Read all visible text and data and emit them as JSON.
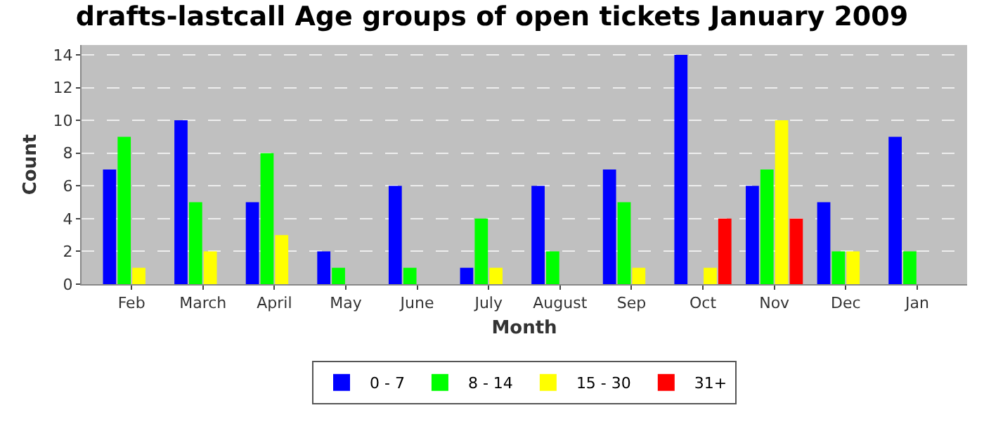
{
  "chart_data": {
    "type": "bar",
    "title": "drafts-lastcall Age groups of open tickets January 2009",
    "xlabel": "Month",
    "ylabel": "Count",
    "categories": [
      "Feb",
      "March",
      "April",
      "May",
      "June",
      "July",
      "August",
      "Sep",
      "Oct",
      "Nov",
      "Dec",
      "Jan"
    ],
    "series": [
      {
        "name": "0 - 7",
        "color": "#0000ff",
        "values": [
          7,
          10,
          5,
          2,
          6,
          1,
          6,
          7,
          14,
          6,
          5,
          9
        ]
      },
      {
        "name": "8 - 14",
        "color": "#00ff00",
        "values": [
          9,
          5,
          8,
          1,
          1,
          4,
          2,
          5,
          0,
          7,
          2,
          2
        ]
      },
      {
        "name": "15 - 30",
        "color": "#ffff00",
        "values": [
          1,
          2,
          3,
          0,
          0,
          1,
          0,
          1,
          1,
          10,
          2,
          0
        ]
      },
      {
        "name": "31+",
        "color": "#ff0000",
        "values": [
          0,
          0,
          0,
          0,
          0,
          0,
          0,
          0,
          4,
          4,
          0,
          0
        ]
      }
    ],
    "ylim": [
      0,
      14.6
    ],
    "yticks": [
      0,
      2,
      4,
      6,
      8,
      10,
      12,
      14
    ],
    "grid": "y",
    "legend": "bottom"
  }
}
